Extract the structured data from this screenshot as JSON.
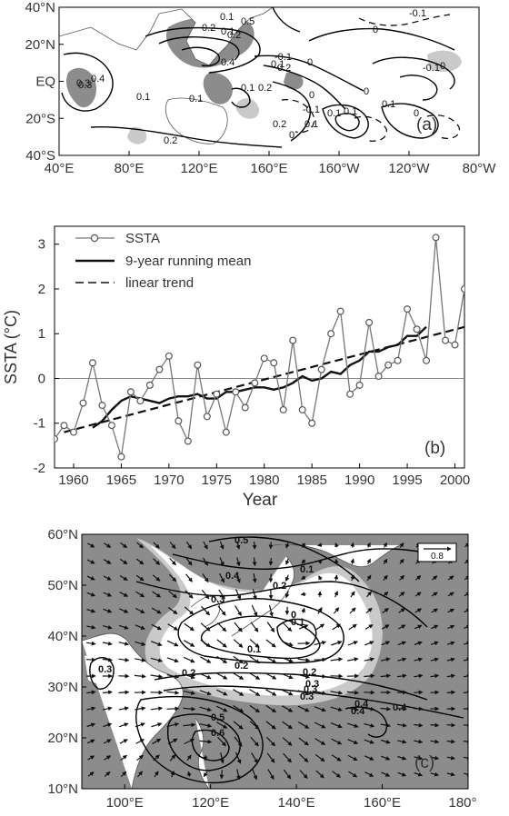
{
  "panel_a": {
    "label": "(a)",
    "x_ticks": [
      "40°E",
      "80°E",
      "120°E",
      "160°E",
      "160°W",
      "120°W",
      "80°W"
    ],
    "y_ticks": [
      "40°N",
      "20°N",
      "EQ",
      "20°S",
      "40°S"
    ],
    "contour_labels": [
      "0.1",
      "0.2",
      "0.3",
      "0.4",
      "0.5",
      "0",
      "-0.1",
      "-0.1",
      "0.2",
      "0.1",
      "0.4",
      "0.3",
      "0.1",
      "0.2",
      "0",
      "0.1",
      "0.2",
      "0.1",
      "0",
      "0.1",
      "-0.1",
      "0.2",
      "0.1",
      "0.1",
      "0.1",
      "0.2",
      "0",
      "-0.1",
      "0",
      "0",
      "0.1",
      "0"
    ]
  },
  "panel_b": {
    "label": "(b)",
    "xlabel": "Year",
    "ylabel": "SSTA (°C)",
    "legend": [
      "SSTA",
      "9-year running mean",
      "linear trend"
    ]
  },
  "panel_c": {
    "label": "(c)",
    "x_ticks": [
      "100°E",
      "120°E",
      "140°E",
      "160°E",
      "180°"
    ],
    "y_ticks": [
      "60°N",
      "50°N",
      "40°N",
      "30°N",
      "20°N",
      "10°N"
    ],
    "contour_labels": [
      "0.5",
      "0.4",
      "0.3",
      "0.2",
      "0.1",
      "0",
      "0.1",
      "0.2",
      "0.3",
      "0.1",
      "0.2",
      "0.3",
      "0.4",
      "0.5",
      "0.6",
      "0.4",
      "0.4",
      "0.3",
      "0.2",
      "0.3"
    ],
    "ref_vector": "0.8"
  },
  "chart_data": [
    {
      "type": "map",
      "title": "",
      "x_ticks": [
        "40°E",
        "80°E",
        "120°E",
        "160°E",
        "160°W",
        "120°W",
        "80°W"
      ],
      "y_ticks": [
        "40°N",
        "20°N",
        "EQ",
        "20°S",
        "40°S"
      ],
      "shading": "significant regions shaded gray"
    },
    {
      "type": "line",
      "xlabel": "Year",
      "ylabel": "SSTA (°C)",
      "xlim": [
        1958,
        2001
      ],
      "ylim": [
        -2,
        3.4
      ],
      "x_ticks": [
        1960,
        1965,
        1970,
        1975,
        1980,
        1985,
        1990,
        1995,
        2000
      ],
      "y_ticks": [
        -2,
        -1,
        0,
        1,
        2,
        3
      ],
      "legend_position": "top-left",
      "series": [
        {
          "name": "SSTA",
          "style": "gray line with open circles",
          "x": [
            1958,
            1959,
            1960,
            1961,
            1962,
            1963,
            1964,
            1965,
            1966,
            1967,
            1968,
            1969,
            1970,
            1971,
            1972,
            1973,
            1974,
            1975,
            1976,
            1977,
            1978,
            1979,
            1980,
            1981,
            1982,
            1983,
            1984,
            1985,
            1986,
            1987,
            1988,
            1989,
            1990,
            1991,
            1992,
            1993,
            1994,
            1995,
            1996,
            1997,
            1998,
            1999,
            2000,
            2001
          ],
          "values": [
            -1.35,
            -1.05,
            -1.2,
            -0.55,
            0.35,
            -0.6,
            -1.05,
            -1.75,
            -0.3,
            -0.5,
            -0.15,
            0.2,
            0.5,
            -0.95,
            -1.4,
            0.3,
            -0.85,
            -0.35,
            -1.2,
            -0.3,
            -0.65,
            -0.1,
            0.45,
            0.35,
            -0.7,
            0.85,
            -0.7,
            -1.0,
            0.2,
            1.0,
            1.5,
            -0.35,
            -0.15,
            1.25,
            0.05,
            0.3,
            0.4,
            1.55,
            1.1,
            0.4,
            3.15,
            0.85,
            0.75,
            2.0
          ]
        },
        {
          "name": "9-year running mean",
          "style": "thick black line",
          "x": [
            1962,
            1963,
            1964,
            1965,
            1966,
            1967,
            1968,
            1969,
            1970,
            1971,
            1972,
            1973,
            1974,
            1975,
            1976,
            1977,
            1978,
            1979,
            1980,
            1981,
            1982,
            1983,
            1984,
            1985,
            1986,
            1987,
            1988,
            1989,
            1990,
            1991,
            1992,
            1993,
            1994,
            1995,
            1996,
            1997
          ],
          "values": [
            -1.1,
            -0.95,
            -0.7,
            -0.5,
            -0.4,
            -0.45,
            -0.5,
            -0.55,
            -0.45,
            -0.4,
            -0.4,
            -0.35,
            -0.45,
            -0.45,
            -0.3,
            -0.3,
            -0.25,
            -0.2,
            -0.2,
            -0.25,
            -0.2,
            -0.1,
            0.05,
            -0.05,
            0.0,
            0.15,
            0.1,
            0.3,
            0.4,
            0.6,
            0.6,
            0.7,
            0.75,
            0.95,
            0.95,
            1.15
          ]
        },
        {
          "name": "linear trend",
          "style": "black dashed line",
          "x": [
            1959,
            2001
          ],
          "values": [
            -1.2,
            1.15
          ]
        }
      ]
    },
    {
      "type": "map",
      "title": "",
      "x_ticks": [
        "100°E",
        "120°E",
        "140°E",
        "160°E",
        "180°"
      ],
      "y_ticks": [
        "60°N",
        "50°N",
        "40°N",
        "30°N",
        "20°N",
        "10°N"
      ],
      "reference_vector": 0.8
    }
  ]
}
